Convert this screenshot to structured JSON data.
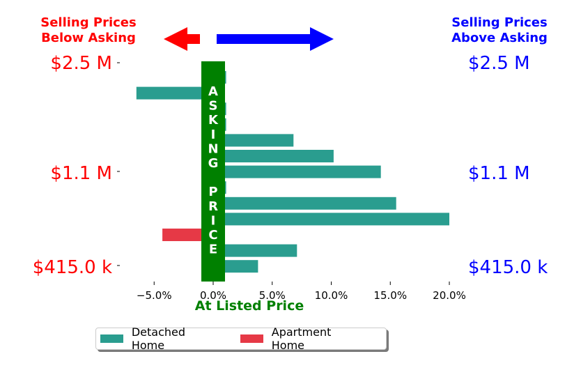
{
  "annotations": {
    "left_header_line1": "Selling Prices",
    "left_header_line2": "Below Asking",
    "right_header_line1": "Selling Prices",
    "right_header_line2": "Above Asking",
    "asking_band_letters": [
      "A",
      "S",
      "K",
      "I",
      "N",
      "G",
      "",
      "P",
      "R",
      "I",
      "C",
      "E"
    ],
    "at_listed_price": "At Listed Price"
  },
  "colors": {
    "below": "#ff0000",
    "above": "#0000ff",
    "asking": "#008000",
    "detached": "#2a9d8f",
    "apartment": "#e63946"
  },
  "chart_data": {
    "type": "bar",
    "orientation": "horizontal",
    "xlim": [
      -0.075,
      0.2
    ],
    "x_ticks": [
      -0.05,
      0.0,
      0.05,
      0.1,
      0.15,
      0.2
    ],
    "x_tick_labels": [
      "−5.0%",
      "0.0%",
      "5.0%",
      "10.0%",
      "15.0%",
      "20.0%"
    ],
    "y_tick_labels_left": [
      "$2.5 M",
      "$1.1 M",
      "$415.0 k"
    ],
    "y_tick_labels_right": [
      "$2.5 M",
      "$1.1 M",
      "$415.0 k"
    ],
    "xlabel": "At Listed Price",
    "legend": [
      "Detached Home",
      "Apartment Home"
    ],
    "series": [
      {
        "name": "Detached Home",
        "values": [
          0.011,
          -0.065,
          0.011,
          0.011,
          0.068,
          0.102,
          0.142,
          0.011,
          0.155,
          0.2,
          0,
          0.071,
          0.038
        ]
      },
      {
        "name": "Apartment Home",
        "values": [
          0,
          0,
          0,
          0,
          0,
          0,
          0,
          0,
          0,
          0,
          -0.043,
          0,
          0
        ]
      }
    ]
  }
}
